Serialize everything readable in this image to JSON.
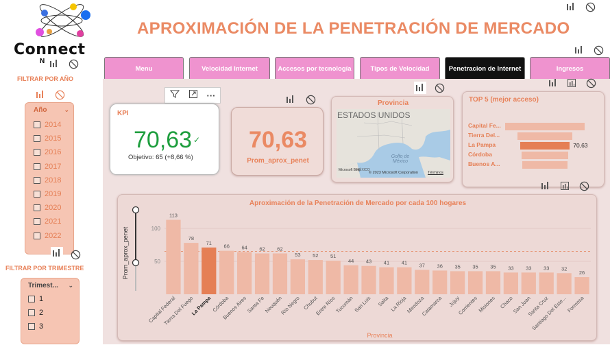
{
  "header": {
    "title": "APROXIMACIÓN DE LA PENETRACIÓN DE MERCADO"
  },
  "logo": {
    "text": "Connect",
    "subtext": "N"
  },
  "sidebar": {
    "year_filter_label": "FILTRAR POR AÑO",
    "year_slicer_title": "Año",
    "years": [
      "2014",
      "2015",
      "2016",
      "2017",
      "2018",
      "2019",
      "2020",
      "2021",
      "2022"
    ],
    "quarter_filter_label": "FILTRAR POR TRIMESTRE",
    "quarter_slicer_title": "Trimest...",
    "quarters": [
      "1",
      "2",
      "3"
    ]
  },
  "nav": {
    "tabs": [
      {
        "label": "Menu"
      },
      {
        "label": "Velocidad Internet"
      },
      {
        "label": "Accesos por tecnología"
      },
      {
        "label": "Tipos de Velocidad"
      },
      {
        "label": "Penetracion de Internet",
        "active": true
      },
      {
        "label": "Ingresos"
      }
    ]
  },
  "kpi": {
    "label": "KPI",
    "value": "70,63",
    "check": "✓",
    "target": "Objetivo: 65 (+8,66 %)"
  },
  "prom": {
    "value": "70,63",
    "label": "Prom_aprox_penet"
  },
  "map": {
    "title": "Provincia",
    "country_label": "ESTADOS UNIDOS",
    "gulf_label": "Golfo de México",
    "attribution": "© 2023 Microsoft Corporation",
    "terms": "Términos",
    "brand": "Microsoft Bing",
    "mexico_label": "MÉXICO"
  },
  "top5": {
    "title": "TOP 5 (mejor acceso)",
    "items": [
      {
        "label": "Capital Fe...",
        "value": 113
      },
      {
        "label": "Tierra Del...",
        "value": 78
      },
      {
        "label": "La Pampa",
        "value": 70.63,
        "highlight": true,
        "value_label": "70,63"
      },
      {
        "label": "Córdoba",
        "value": 66
      },
      {
        "label": "Buenos A...",
        "value": 64
      }
    ]
  },
  "colors": {
    "accent": "#ea8a64",
    "bar": "#efb9a6",
    "bar_highlight": "#e57f55",
    "nav": "#ef93cf"
  },
  "chart_data": {
    "type": "bar",
    "title": "Aproximación de la Penetración de Mercado por cada 100 hogares",
    "xlabel": "Provincia",
    "ylabel": "Prom_aprox_penet",
    "ylim": [
      0,
      125
    ],
    "yticks": [
      50,
      100
    ],
    "categories": [
      "Capital Federal",
      "Tierra Del Fuego",
      "La Pampa",
      "Córdoba",
      "Buenos Aires",
      "Santa Fe",
      "Neuquén",
      "Río Negro",
      "Chubut",
      "Entre Ríos",
      "Tucumán",
      "San Luis",
      "Salta",
      "La Rioja",
      "Mendoza",
      "Catamarca",
      "Jujuy",
      "Corrientes",
      "Misiones",
      "Chaco",
      "San Juan",
      "Santa Cruz",
      "Santiago Del Este...",
      "Formosa"
    ],
    "values": [
      113,
      78,
      71,
      66,
      64,
      62,
      62,
      53,
      52,
      51,
      44,
      43,
      41,
      41,
      37,
      36,
      35,
      35,
      35,
      33,
      33,
      33,
      32,
      26
    ],
    "highlight_index": 2,
    "reference_line": 65
  }
}
